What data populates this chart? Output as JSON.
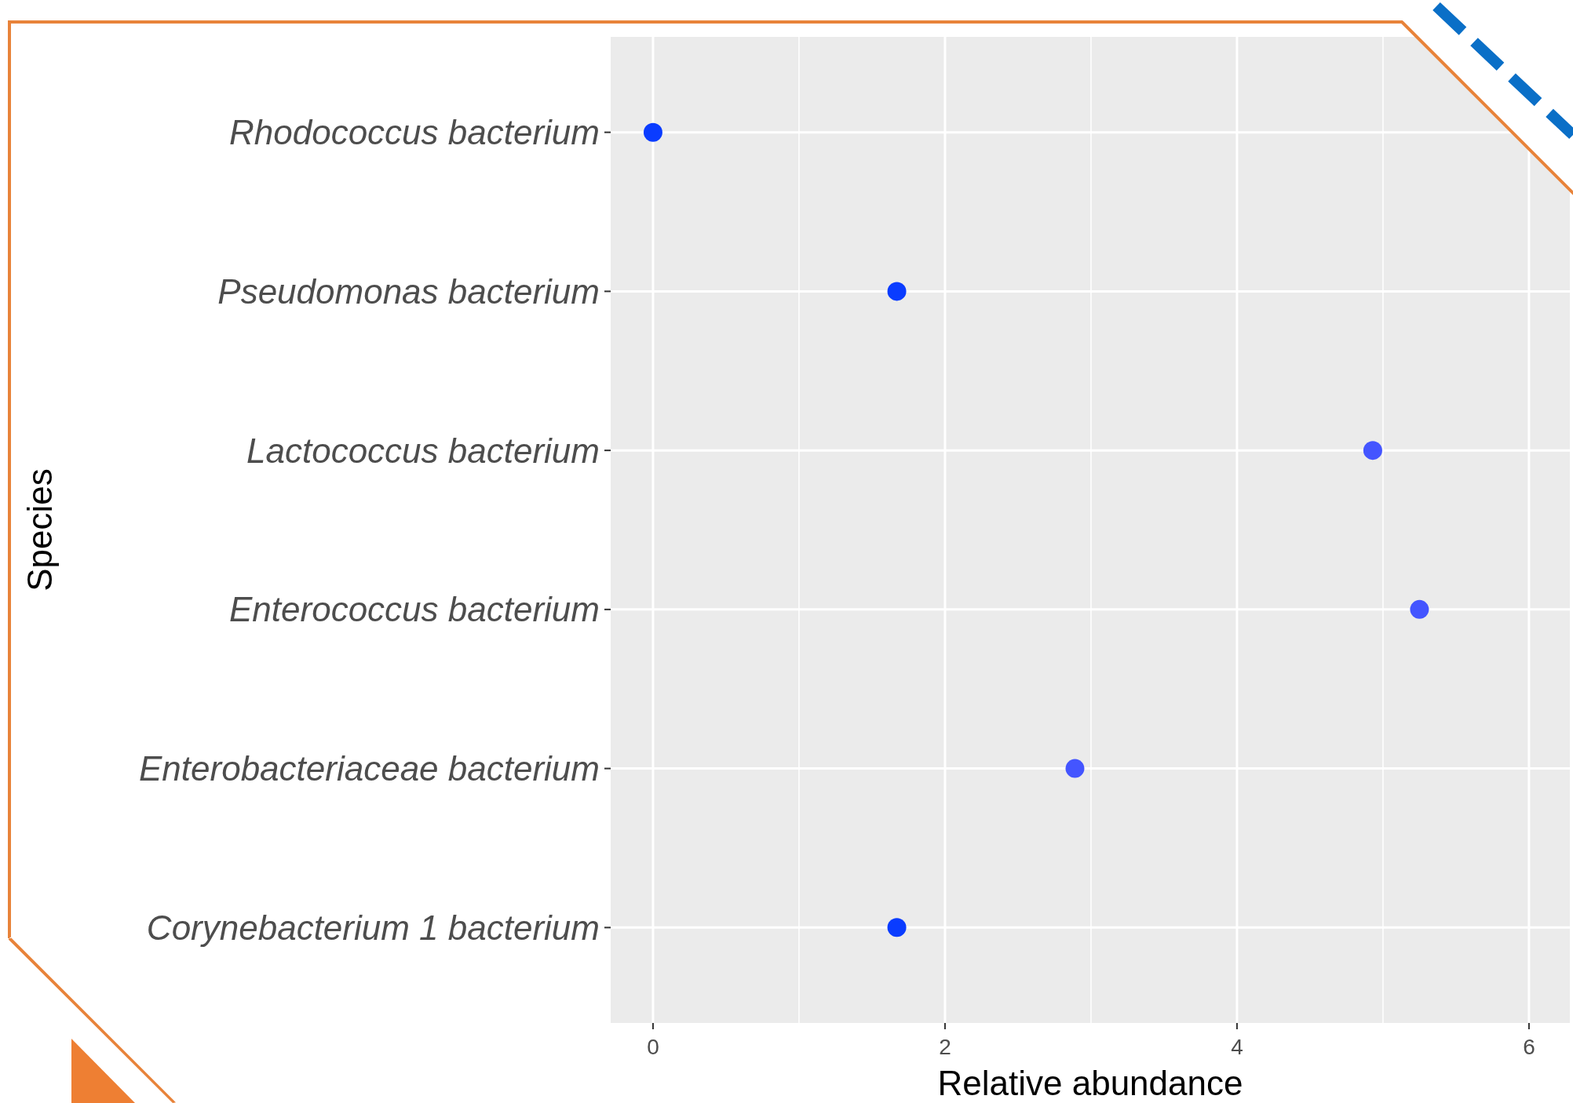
{
  "chart_data": {
    "type": "scatter",
    "orientation": "horizontal",
    "xlabel": "Relative abundance",
    "ylabel": "Species",
    "categories": [
      "Rhodococcus bacterium",
      "Pseudomonas bacterium",
      "Lactococcus bacterium",
      "Enterococcus bacterium",
      "Enterobacteriaceae bacterium",
      "Corynebacterium 1 bacterium"
    ],
    "values": [
      0,
      1.67,
      4.93,
      5.25,
      2.89,
      1.67
    ],
    "colors": [
      "#0a3cff",
      "#0a3cff",
      "#4455ff",
      "#4455ff",
      "#4455ff",
      "#0a3cff"
    ],
    "xlim": [
      -0.29,
      6.28
    ],
    "xticks": [
      0,
      {
        "value": 1,
        "label": null
      },
      2,
      {
        "value": 3,
        "label": null
      },
      4,
      {
        "value": 5,
        "label": null
      },
      6
    ],
    "grid": true,
    "marker": "circle"
  }
}
